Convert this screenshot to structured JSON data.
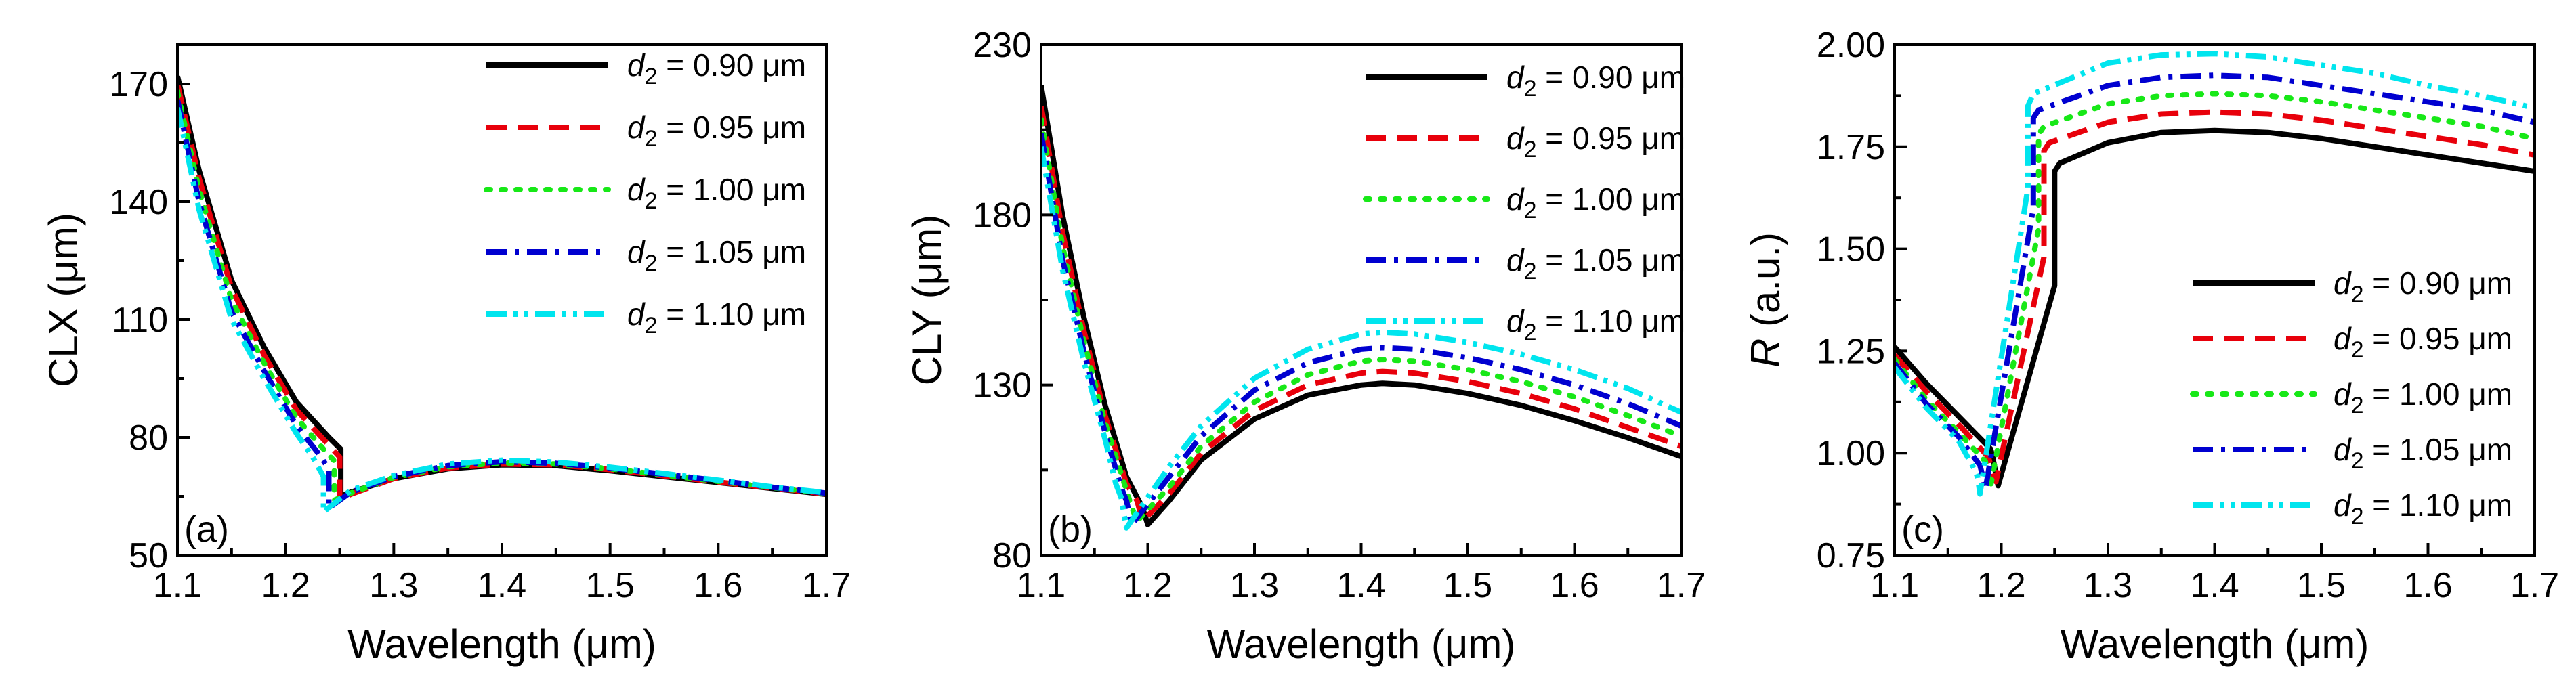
{
  "chart_data": [
    {
      "type": "line",
      "panel_label": "(a)",
      "xlabel": "Wavelength (μm)",
      "ylabel": "CLX (μm)",
      "xlim": [
        1.1,
        1.7
      ],
      "ylim": [
        50,
        180
      ],
      "xticks": [
        "1.1",
        "1.2",
        "1.3",
        "1.4",
        "1.5",
        "1.6",
        "1.7"
      ],
      "yticks": [
        "50",
        "80",
        "110",
        "140",
        "170"
      ],
      "legend": "top-right",
      "series": [
        {
          "name": "d2 = 0.90 μm",
          "color": "#000000",
          "dash": "solid",
          "x": [
            1.1,
            1.12,
            1.15,
            1.18,
            1.21,
            1.24,
            1.251,
            1.251,
            1.26,
            1.3,
            1.35,
            1.4,
            1.45,
            1.5,
            1.55,
            1.6,
            1.65,
            1.7
          ],
          "y": [
            172,
            148,
            120,
            103,
            89,
            80,
            77,
            65,
            66,
            69.5,
            72,
            73,
            72.8,
            71.5,
            70,
            68.5,
            67,
            65.5
          ]
        },
        {
          "name": "d2 = 0.95 μm",
          "color": "#e8000b",
          "dash": "dashed",
          "x": [
            1.1,
            1.12,
            1.15,
            1.18,
            1.21,
            1.24,
            1.25,
            1.25,
            1.26,
            1.3,
            1.35,
            1.4,
            1.45,
            1.5,
            1.55,
            1.6,
            1.65,
            1.7
          ],
          "y": [
            170,
            146,
            118,
            101,
            87,
            78,
            75,
            64,
            65.5,
            69.5,
            72.2,
            73.2,
            73,
            71.8,
            70.2,
            68.6,
            67.1,
            65.6
          ]
        },
        {
          "name": "d2 = 1.00 μm",
          "color": "#17e817",
          "dash": "dotted",
          "x": [
            1.1,
            1.12,
            1.15,
            1.18,
            1.21,
            1.235,
            1.245,
            1.245,
            1.26,
            1.3,
            1.35,
            1.4,
            1.45,
            1.5,
            1.55,
            1.6,
            1.65,
            1.7
          ],
          "y": [
            168,
            143,
            115,
            99,
            85,
            77,
            74,
            64,
            65.8,
            69.8,
            72.5,
            73.5,
            73.2,
            72,
            70.4,
            68.8,
            67.2,
            65.7
          ]
        },
        {
          "name": "d2 = 1.05 μm",
          "color": "#0000d0",
          "dash": "dashdot",
          "x": [
            1.1,
            1.12,
            1.15,
            1.18,
            1.21,
            1.23,
            1.24,
            1.24,
            1.26,
            1.3,
            1.35,
            1.4,
            1.45,
            1.5,
            1.55,
            1.6,
            1.65,
            1.7
          ],
          "y": [
            166,
            140,
            112,
            97,
            83,
            76,
            72,
            62,
            66,
            70,
            72.8,
            73.8,
            73.4,
            72.2,
            70.6,
            69,
            67.3,
            65.8
          ]
        },
        {
          "name": "d2 = 1.10 μm",
          "color": "#00e5ee",
          "dash": "dashdotdot",
          "x": [
            1.1,
            1.12,
            1.15,
            1.18,
            1.21,
            1.225,
            1.235,
            1.235,
            1.26,
            1.3,
            1.35,
            1.4,
            1.45,
            1.5,
            1.55,
            1.6,
            1.65,
            1.7
          ],
          "y": [
            164,
            138,
            110,
            95,
            81,
            75,
            70,
            61,
            66.5,
            70.3,
            73.2,
            74.2,
            73.7,
            72.4,
            70.8,
            69.1,
            67.4,
            65.9
          ]
        }
      ]
    },
    {
      "type": "line",
      "panel_label": "(b)",
      "xlabel": "Wavelength (μm)",
      "ylabel": "CLY (μm)",
      "xlim": [
        1.1,
        1.7
      ],
      "ylim": [
        80,
        230
      ],
      "xticks": [
        "1.1",
        "1.2",
        "1.3",
        "1.4",
        "1.5",
        "1.6",
        "1.7"
      ],
      "yticks": [
        "80",
        "130",
        "180",
        "230"
      ],
      "legend": "top-right",
      "series": [
        {
          "name": "d2 = 0.90 μm",
          "color": "#000000",
          "dash": "solid",
          "x": [
            1.1,
            1.12,
            1.14,
            1.16,
            1.18,
            1.195,
            1.2,
            1.22,
            1.25,
            1.3,
            1.35,
            1.4,
            1.42,
            1.45,
            1.5,
            1.55,
            1.6,
            1.65,
            1.7
          ],
          "y": [
            218,
            180,
            150,
            124,
            103,
            94,
            89,
            96,
            108,
            120,
            127,
            130,
            130.5,
            130,
            127.5,
            124,
            119.5,
            114.5,
            109
          ]
        },
        {
          "name": "d2 = 0.95 μm",
          "color": "#e8000b",
          "dash": "dashed",
          "x": [
            1.1,
            1.12,
            1.14,
            1.16,
            1.18,
            1.19,
            1.195,
            1.22,
            1.25,
            1.3,
            1.35,
            1.4,
            1.42,
            1.45,
            1.5,
            1.55,
            1.6,
            1.65,
            1.7
          ],
          "y": [
            212,
            175,
            146,
            121,
            101,
            96,
            90,
            98,
            110,
            122.5,
            130,
            133.5,
            134,
            133.5,
            131,
            127.5,
            123,
            117.5,
            112
          ]
        },
        {
          "name": "d2 = 1.00 μm",
          "color": "#17e817",
          "dash": "dotted",
          "x": [
            1.1,
            1.12,
            1.14,
            1.16,
            1.18,
            1.185,
            1.19,
            1.22,
            1.25,
            1.3,
            1.35,
            1.4,
            1.42,
            1.45,
            1.5,
            1.55,
            1.6,
            1.65,
            1.7
          ],
          "y": [
            208,
            171,
            143,
            119,
            99,
            94,
            90,
            100,
            112,
            125,
            133,
            137,
            137.5,
            137,
            134.5,
            131,
            126.5,
            121,
            115
          ]
        },
        {
          "name": "d2 = 1.05 μm",
          "color": "#0000d0",
          "dash": "dashdot",
          "x": [
            1.1,
            1.12,
            1.14,
            1.16,
            1.175,
            1.18,
            1.185,
            1.22,
            1.25,
            1.3,
            1.35,
            1.4,
            1.42,
            1.45,
            1.5,
            1.55,
            1.6,
            1.65,
            1.7
          ],
          "y": [
            204,
            167,
            140,
            116,
            100,
            96,
            89,
            103,
            115,
            128.5,
            136.5,
            140.5,
            141,
            140.5,
            138,
            134.5,
            130,
            124.5,
            118
          ]
        },
        {
          "name": "d2 = 1.10 μm",
          "color": "#00e5ee",
          "dash": "dashdotdot",
          "x": [
            1.1,
            1.12,
            1.14,
            1.16,
            1.17,
            1.175,
            1.18,
            1.22,
            1.25,
            1.3,
            1.35,
            1.4,
            1.42,
            1.45,
            1.5,
            1.55,
            1.6,
            1.65,
            1.7
          ],
          "y": [
            200,
            164,
            137,
            114,
            101,
            97,
            88,
            106,
            118,
            132,
            140.5,
            145,
            145.5,
            145,
            142.5,
            139,
            134.5,
            129,
            122
          ]
        }
      ]
    },
    {
      "type": "line",
      "panel_label": "(c)",
      "xlabel": "Wavelength (μm)",
      "ylabel": "R (a.u.)",
      "ylabel_italic_part": "R",
      "ylabel_rest": " (a.u.)",
      "xlim": [
        1.1,
        1.7
      ],
      "ylim": [
        0.75,
        2.0
      ],
      "xticks": [
        "1.1",
        "1.2",
        "1.3",
        "1.4",
        "1.5",
        "1.6",
        "1.7"
      ],
      "yticks": [
        "0.75",
        "1.00",
        "1.25",
        "1.50",
        "1.75",
        "2.00"
      ],
      "legend": "bottom-right",
      "series": [
        {
          "name": "d2 = 0.90 μm",
          "color": "#000000",
          "dash": "solid",
          "x": [
            1.1,
            1.13,
            1.16,
            1.19,
            1.192,
            1.197,
            1.25,
            1.25,
            1.255,
            1.3,
            1.35,
            1.4,
            1.45,
            1.5,
            1.55,
            1.6,
            1.65,
            1.7
          ],
          "y": [
            1.26,
            1.17,
            1.09,
            1.01,
            0.99,
            0.92,
            1.41,
            1.69,
            1.71,
            1.76,
            1.785,
            1.79,
            1.785,
            1.77,
            1.75,
            1.73,
            1.71,
            1.69
          ]
        },
        {
          "name": "d2 = 0.95 μm",
          "color": "#e8000b",
          "dash": "dashed",
          "x": [
            1.1,
            1.13,
            1.16,
            1.188,
            1.19,
            1.195,
            1.24,
            1.24,
            1.245,
            1.3,
            1.35,
            1.4,
            1.45,
            1.5,
            1.55,
            1.6,
            1.65,
            1.7
          ],
          "y": [
            1.24,
            1.15,
            1.07,
            0.99,
            0.97,
            0.93,
            1.48,
            1.74,
            1.76,
            1.81,
            1.83,
            1.835,
            1.83,
            1.815,
            1.795,
            1.775,
            1.755,
            1.73
          ]
        },
        {
          "name": "d2 = 1.00 μm",
          "color": "#17e817",
          "dash": "dotted",
          "x": [
            1.1,
            1.13,
            1.16,
            1.185,
            1.187,
            1.19,
            1.235,
            1.235,
            1.24,
            1.3,
            1.35,
            1.4,
            1.45,
            1.5,
            1.55,
            1.6,
            1.65,
            1.7
          ],
          "y": [
            1.23,
            1.13,
            1.05,
            0.98,
            0.96,
            0.92,
            1.55,
            1.78,
            1.8,
            1.855,
            1.875,
            1.88,
            1.875,
            1.86,
            1.84,
            1.82,
            1.8,
            1.77
          ]
        },
        {
          "name": "d2 = 1.05 μm",
          "color": "#0000d0",
          "dash": "dashdot",
          "x": [
            1.1,
            1.13,
            1.16,
            1.18,
            1.182,
            1.185,
            1.23,
            1.23,
            1.235,
            1.3,
            1.35,
            1.4,
            1.45,
            1.5,
            1.55,
            1.6,
            1.65,
            1.7
          ],
          "y": [
            1.22,
            1.12,
            1.04,
            0.97,
            0.95,
            0.91,
            1.6,
            1.82,
            1.84,
            1.9,
            1.92,
            1.925,
            1.92,
            1.9,
            1.88,
            1.86,
            1.84,
            1.81
          ]
        },
        {
          "name": "d2 = 1.10 μm",
          "color": "#00e5ee",
          "dash": "dashdotdot",
          "x": [
            1.1,
            1.13,
            1.16,
            1.175,
            1.178,
            1.18,
            1.225,
            1.225,
            1.23,
            1.3,
            1.35,
            1.4,
            1.45,
            1.5,
            1.55,
            1.6,
            1.65,
            1.7
          ],
          "y": [
            1.21,
            1.11,
            1.03,
            0.96,
            0.94,
            0.9,
            1.65,
            1.85,
            1.88,
            1.955,
            1.975,
            1.978,
            1.97,
            1.95,
            1.93,
            1.9,
            1.875,
            1.845
          ]
        }
      ]
    }
  ]
}
